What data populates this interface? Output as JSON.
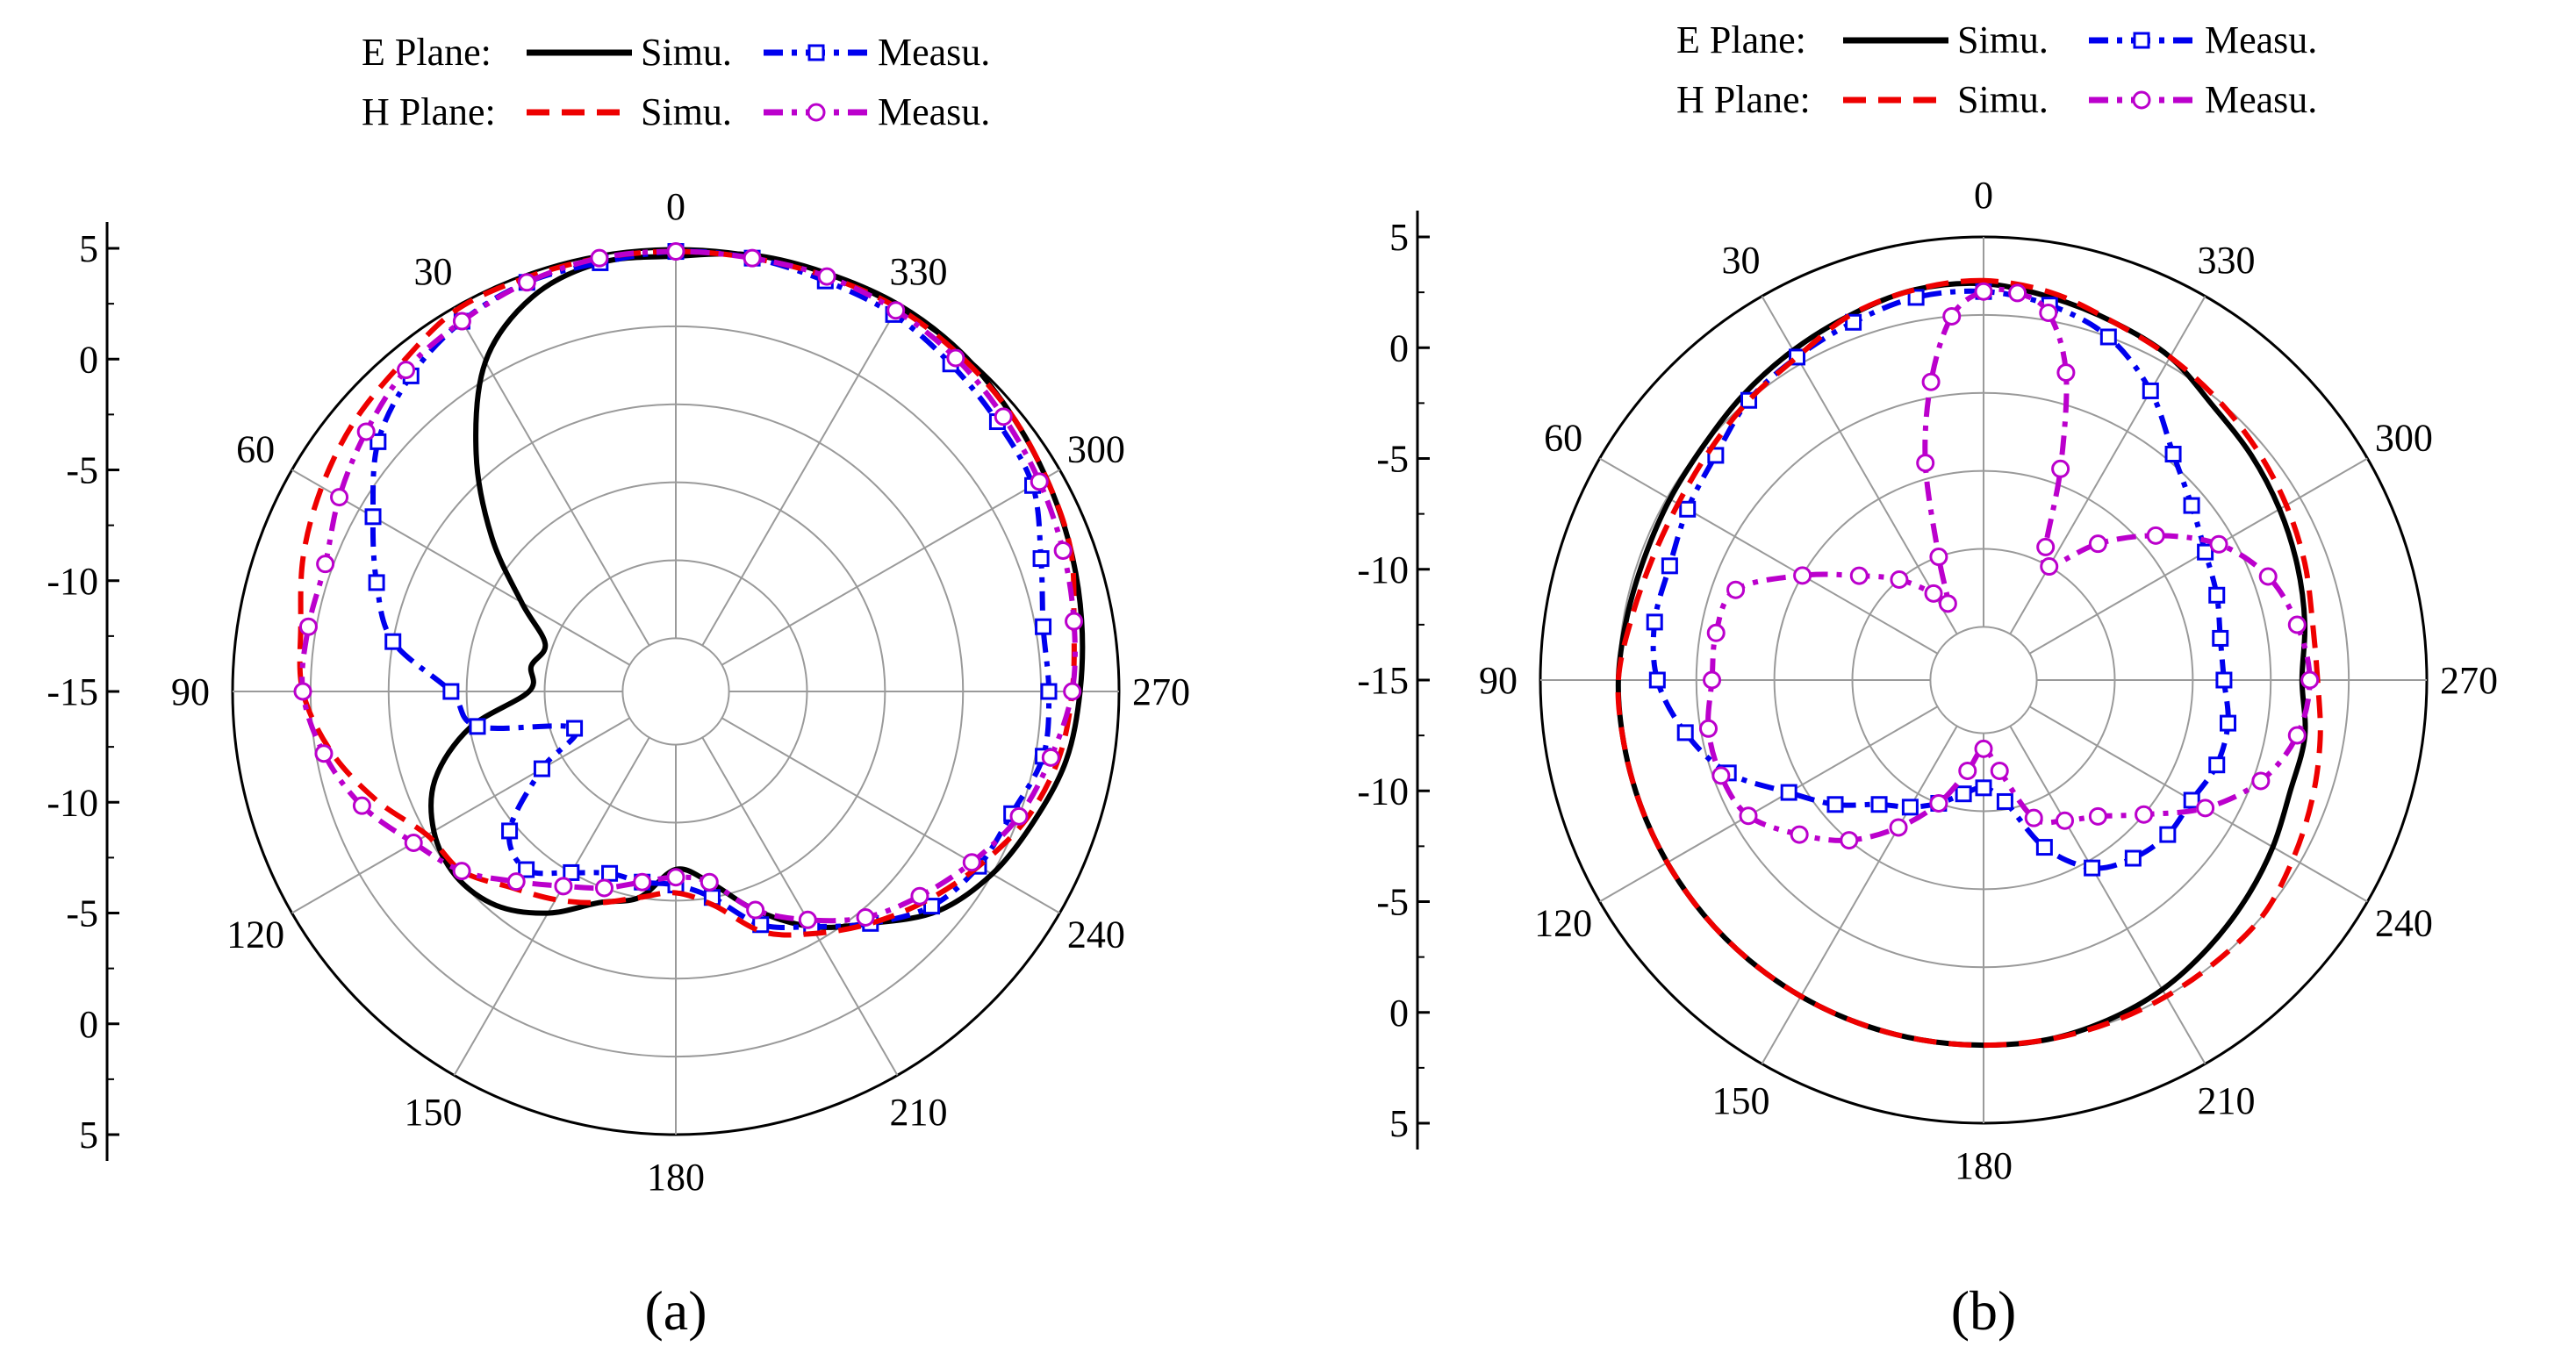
{
  "legend": {
    "e_plane_label": "E Plane:",
    "h_plane_label": "H Plane:",
    "simu_label": "Simu.",
    "measu_label": "Measu."
  },
  "series_style": {
    "e_simu": {
      "color": "#000000",
      "dash": "solid",
      "marker": "none"
    },
    "e_measu": {
      "color": "#0000ee",
      "dash": "dashdot",
      "marker": "square"
    },
    "h_simu": {
      "color": "#ee0000",
      "dash": "dash",
      "marker": "none"
    },
    "h_measu": {
      "color": "#bb00cc",
      "dash": "dashdot",
      "marker": "circle"
    }
  },
  "chart_data": [
    {
      "type": "polar-line",
      "panel_label": "(a)",
      "angle_ticks": [
        "0",
        "30",
        "60",
        "90",
        "120",
        "150",
        "180",
        "210",
        "240",
        "270",
        "300",
        "330"
      ],
      "angle_direction": "clockwise labels decrease: 0 top, 90 left, 270 right",
      "radial_range": [
        -20,
        5
      ],
      "radial_tick_labels": [
        "5",
        "0",
        "-5",
        "-10",
        "-15",
        "-10",
        "-5",
        "0",
        "5"
      ],
      "grid": true,
      "series": [
        {
          "key": "e_simu",
          "theta": [
            0,
            10,
            20,
            30,
            40,
            50,
            60,
            70,
            80,
            90,
            100,
            110,
            120,
            130,
            140,
            150,
            160,
            170,
            180,
            190,
            200,
            210,
            220,
            230,
            240,
            250,
            260,
            270,
            280,
            290,
            300,
            310,
            320,
            330,
            340,
            350
          ],
          "r": [
            4.5,
            4.5,
            3.5,
            1.0,
            -3.5,
            -8.0,
            -12.0,
            -14.5,
            -14.0,
            -14.0,
            -10.0,
            -7.0,
            -5.5,
            -5.0,
            -5.5,
            -7.0,
            -9.0,
            -10.0,
            -12.0,
            -11.0,
            -8.5,
            -6.0,
            -4.0,
            -1.5,
            0.0,
            1.0,
            2.0,
            2.5,
            3.0,
            3.5,
            4.0,
            4.5,
            5.0,
            5.2,
            5.1,
            5.0
          ]
        },
        {
          "key": "e_measu",
          "theta": [
            0,
            10,
            20,
            30,
            40,
            50,
            60,
            70,
            80,
            90,
            100,
            110,
            120,
            130,
            140,
            150,
            160,
            170,
            180,
            190,
            200,
            210,
            220,
            230,
            240,
            250,
            260,
            270,
            280,
            290,
            300,
            310,
            320,
            330,
            340,
            350
          ],
          "r": [
            4.8,
            4.5,
            4.5,
            4.0,
            3.0,
            1.5,
            -1.0,
            -3.0,
            -5.0,
            -9.0,
            -10.5,
            -16.5,
            -13.5,
            -9.5,
            -8.5,
            -10.0,
            -11.0,
            -11.0,
            -11.0,
            -10.0,
            -7.5,
            -6.0,
            -4.0,
            -2.0,
            -1.0,
            -0.5,
            0.5,
            0.5,
            0.5,
            1.5,
            3.0,
            3.5,
            4.0,
            4.5,
            4.6,
            4.8
          ]
        },
        {
          "key": "h_simu",
          "theta": [
            0,
            10,
            20,
            30,
            40,
            50,
            60,
            70,
            80,
            90,
            100,
            110,
            120,
            130,
            140,
            150,
            160,
            170,
            180,
            190,
            200,
            210,
            220,
            230,
            240,
            250,
            260,
            270,
            280,
            290,
            300,
            310,
            320,
            330,
            340,
            350
          ],
          "r": [
            4.8,
            4.8,
            4.8,
            4.8,
            4.0,
            3.5,
            2.8,
            2.0,
            1.0,
            0.5,
            -1.0,
            -3.0,
            -5.0,
            -5.5,
            -7.0,
            -8.0,
            -9.0,
            -10.0,
            -10.5,
            -9.5,
            -7.0,
            -5.5,
            -4.0,
            -2.5,
            -1.0,
            0.5,
            1.5,
            2.0,
            2.5,
            3.5,
            4.0,
            4.5,
            4.8,
            5.0,
            4.9,
            4.8
          ]
        },
        {
          "key": "h_measu",
          "theta": [
            0,
            10,
            20,
            30,
            40,
            50,
            60,
            70,
            80,
            90,
            100,
            110,
            120,
            130,
            140,
            150,
            160,
            170,
            180,
            190,
            200,
            210,
            220,
            230,
            240,
            250,
            260,
            270,
            280,
            290,
            300,
            310,
            320,
            330,
            340,
            350
          ],
          "r": [
            4.8,
            4.8,
            4.5,
            4.0,
            3.5,
            2.5,
            1.5,
            0.5,
            0.5,
            0.5,
            -0.5,
            -2.0,
            -4.0,
            -5.5,
            -7.5,
            -9.0,
            -10.0,
            -11.0,
            -11.5,
            -11.0,
            -8.5,
            -6.5,
            -4.5,
            -3.0,
            -1.5,
            0.0,
            1.0,
            2.0,
            2.5,
            3.0,
            3.5,
            4.0,
            4.5,
            4.8,
            4.9,
            4.8
          ]
        }
      ]
    },
    {
      "type": "polar-line",
      "panel_label": "(b)",
      "angle_ticks": [
        "0",
        "30",
        "60",
        "90",
        "120",
        "150",
        "180",
        "210",
        "240",
        "270",
        "300",
        "330"
      ],
      "angle_direction": "clockwise labels decrease: 0 top, 90 left, 270 right",
      "radial_range": [
        -20,
        5
      ],
      "radial_tick_labels": [
        "5",
        "0",
        "-5",
        "-10",
        "-15",
        "-10",
        "-5",
        "0",
        "5"
      ],
      "grid": true,
      "series": [
        {
          "key": "e_simu",
          "theta": [
            0,
            10,
            20,
            30,
            40,
            50,
            60,
            70,
            80,
            90,
            100,
            110,
            120,
            130,
            140,
            150,
            160,
            170,
            180,
            190,
            200,
            210,
            220,
            230,
            240,
            250,
            260,
            270,
            280,
            290,
            300,
            310,
            320,
            330,
            340,
            350
          ],
          "r": [
            2.0,
            2.0,
            1.5,
            1.0,
            0.5,
            0.0,
            -0.2,
            -0.3,
            -0.2,
            0.0,
            0.0,
            0.0,
            0.0,
            0.0,
            0.0,
            0.0,
            0.0,
            0.0,
            0.0,
            0.0,
            -0.2,
            -0.5,
            -1.0,
            -1.5,
            -2.0,
            -2.5,
            -2.5,
            -3.0,
            -2.5,
            -2.0,
            -1.5,
            -1.0,
            -0.5,
            0.5,
            1.0,
            1.5
          ]
        },
        {
          "key": "e_measu",
          "theta": [
            0,
            10,
            20,
            30,
            40,
            50,
            60,
            70,
            80,
            90,
            100,
            110,
            120,
            130,
            140,
            150,
            160,
            170,
            180,
            190,
            200,
            210,
            220,
            230,
            240,
            250,
            260,
            270,
            280,
            290,
            300,
            310,
            320,
            330,
            340,
            350
          ],
          "r": [
            1.5,
            1.5,
            1.0,
            0.5,
            0.0,
            -1.0,
            -1.5,
            -2.0,
            -2.0,
            -2.5,
            -4.0,
            -6.0,
            -9.0,
            -11.0,
            -13.0,
            -14.0,
            -15.0,
            -16.0,
            -16.5,
            -15.5,
            -12.0,
            -9.5,
            -8.5,
            -8.0,
            -8.0,
            -7.5,
            -7.5,
            -8.0,
            -8.0,
            -7.5,
            -7.0,
            -6.0,
            -4.5,
            -2.0,
            0.0,
            1.0
          ]
        },
        {
          "key": "h_simu",
          "theta": [
            0,
            10,
            20,
            30,
            40,
            50,
            60,
            70,
            80,
            90,
            100,
            110,
            120,
            130,
            140,
            150,
            160,
            170,
            180,
            190,
            200,
            210,
            220,
            230,
            240,
            250,
            260,
            270,
            280,
            290,
            300,
            310,
            320,
            330,
            340,
            350
          ],
          "r": [
            2.2,
            2.0,
            1.5,
            0.5,
            0.0,
            -0.5,
            -0.8,
            -0.8,
            -0.5,
            0.0,
            0.0,
            0.0,
            0.0,
            0.0,
            0.0,
            0.0,
            0.0,
            0.0,
            0.0,
            0.0,
            0.0,
            0.0,
            0.0,
            0.0,
            -0.5,
            -1.0,
            -1.5,
            -2.0,
            -2.0,
            -1.5,
            -1.0,
            -0.5,
            0.0,
            0.5,
            1.0,
            1.8
          ]
        },
        {
          "key": "h_measu",
          "theta": [
            0,
            5,
            10,
            15,
            20,
            25,
            30,
            40,
            50,
            60,
            70,
            80,
            90,
            100,
            110,
            120,
            130,
            140,
            150,
            160,
            170,
            180,
            190,
            200,
            210,
            220,
            230,
            240,
            250,
            260,
            270,
            280,
            290,
            300,
            310,
            320,
            330,
            335,
            340,
            345,
            350,
            355
          ],
          "r": [
            1.5,
            0.0,
            -4.0,
            -9.0,
            -15.0,
            -18.0,
            -17.0,
            -15.0,
            -13.0,
            -10.0,
            -6.5,
            -6.0,
            -6.0,
            -5.5,
            -5.5,
            -6.0,
            -8.0,
            -10.0,
            -12.5,
            -15.0,
            -17.5,
            -19.0,
            -17.5,
            -14.0,
            -13.0,
            -12.0,
            -10.0,
            -7.0,
            -4.5,
            -3.0,
            -2.5,
            -3.0,
            -4.0,
            -6.0,
            -9.0,
            -12.0,
            -15.0,
            -14.0,
            -9.0,
            -3.0,
            0.5,
            1.5
          ]
        }
      ]
    }
  ]
}
